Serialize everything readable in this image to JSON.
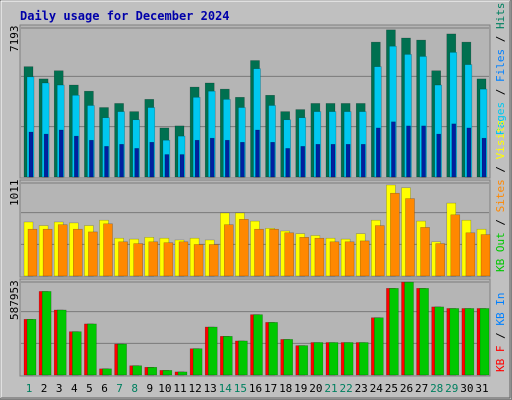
{
  "title": "Daily usage for December 2024",
  "colors": {
    "background": "#c0c0c0",
    "panel": "#b5b5b5",
    "grid": "#7a7a7a",
    "hits": "#008060",
    "files": "#00c8f0",
    "pages": "#00b8f0",
    "visits": "#ffff00",
    "sites": "#ff8800",
    "kbin": "#0080ff",
    "kbout": "#00c800",
    "kbf": "#ff0000",
    "title": "#0000aa",
    "day_weekday": "#000000",
    "day_weekend": "#008060"
  },
  "legend": {
    "top": [
      {
        "text": "Hits",
        "color": "#008060"
      },
      {
        "text": " / ",
        "color": "#000000"
      },
      {
        "text": "Files",
        "color": "#0080ff"
      },
      {
        "text": " / ",
        "color": "#000000"
      },
      {
        "text": "Pages",
        "color": "#00c8f0"
      }
    ],
    "middle": [
      {
        "text": "Visits",
        "color": "#ffff00"
      },
      {
        "text": " / ",
        "color": "#000000"
      },
      {
        "text": "Sites",
        "color": "#ff8800"
      },
      {
        "text": " / ",
        "color": "#000000"
      },
      {
        "text": "KB Out",
        "color": "#00c800"
      }
    ],
    "bottom": [
      {
        "text": "KB In",
        "color": "#0080ff"
      },
      {
        "text": " / ",
        "color": "#000000"
      },
      {
        "text": "KB F",
        "color": "#ff0000"
      }
    ]
  },
  "chart_data": {
    "type": "bar",
    "days": [
      "1",
      "2",
      "3",
      "4",
      "5",
      "6",
      "7",
      "8",
      "9",
      "10",
      "11",
      "12",
      "13",
      "14",
      "15",
      "16",
      "17",
      "18",
      "19",
      "20",
      "21",
      "22",
      "23",
      "24",
      "25",
      "26",
      "27",
      "28",
      "29",
      "30",
      "31"
    ],
    "weekend_days": [
      "1",
      "7",
      "8",
      "14",
      "15",
      "21",
      "22",
      "28",
      "29"
    ],
    "panels": [
      {
        "name": "hits-files-pages",
        "max_label": "7193",
        "ymax": 7193,
        "series": [
          {
            "name": "Hits",
            "color": "#007050",
            "values": [
              5400,
              4800,
              5200,
              4500,
              4200,
              3400,
              3600,
              3200,
              3800,
              2400,
              2500,
              4400,
              4600,
              4300,
              3900,
              5700,
              4000,
              3200,
              3300,
              3600,
              3600,
              3600,
              3600,
              6600,
              7200,
              6800,
              6700,
              5200,
              7000,
              6600,
              4800
            ]
          },
          {
            "name": "Files",
            "color": "#00c8f0",
            "values": [
              4900,
              4600,
              4500,
              4000,
              3500,
              2900,
              3200,
              2800,
              3400,
              1800,
              2000,
              3900,
              4200,
              3800,
              3400,
              5300,
              3500,
              2800,
              2900,
              3200,
              3200,
              3200,
              3200,
              5400,
              6400,
              6000,
              5900,
              4500,
              6100,
              5500,
              4300
            ]
          },
          {
            "name": "Pages",
            "color": "#0020a0",
            "values": [
              2200,
              2100,
              2300,
              2000,
              1800,
              1500,
              1600,
              1400,
              1700,
              1100,
              1100,
              1800,
              1900,
              1800,
              1700,
              2300,
              1700,
              1400,
              1500,
              1600,
              1600,
              1600,
              1600,
              2400,
              2700,
              2500,
              2500,
              2100,
              2600,
              2400,
              1900
            ]
          }
        ]
      },
      {
        "name": "visits-sites",
        "max_label": "1011",
        "ymax": 1011,
        "series": [
          {
            "name": "Visits",
            "color": "#ffff00",
            "values": [
              600,
              560,
              600,
              590,
              560,
              620,
              420,
              410,
              430,
              420,
              400,
              420,
              400,
              700,
              700,
              610,
              530,
              500,
              470,
              450,
              420,
              410,
              470,
              620,
              1011,
              980,
              610,
              380,
              810,
              620,
              520
            ]
          },
          {
            "name": "Sites",
            "color": "#ff8800",
            "values": [
              520,
              520,
              570,
              520,
              490,
              580,
              380,
              360,
              380,
              370,
              380,
              350,
              350,
              570,
              630,
              520,
              520,
              480,
              430,
              420,
              380,
              380,
              390,
              560,
              920,
              860,
              540,
              360,
              680,
              480,
              460
            ]
          }
        ]
      },
      {
        "name": "kbytes",
        "max_label": "587953",
        "ymax": 587953,
        "series": [
          {
            "name": "KB In",
            "color": "#ff0000",
            "values": [
              360000,
              540000,
              420000,
              280000,
              330000,
              40000,
              200000,
              60000,
              50000,
              30000,
              20000,
              170000,
              310000,
              250000,
              220000,
              390000,
              340000,
              230000,
              190000,
              210000,
              210000,
              210000,
              210000,
              370000,
              560000,
              600000,
              560000,
              440000,
              430000,
              430000,
              430000
            ]
          },
          {
            "name": "KB Out",
            "color": "#00c800",
            "values": [
              360000,
              540000,
              420000,
              280000,
              330000,
              40000,
              200000,
              60000,
              50000,
              30000,
              20000,
              170000,
              310000,
              250000,
              220000,
              390000,
              340000,
              230000,
              190000,
              210000,
              210000,
              210000,
              210000,
              370000,
              560000,
              600000,
              560000,
              440000,
              430000,
              430000,
              430000
            ]
          }
        ]
      }
    ]
  }
}
